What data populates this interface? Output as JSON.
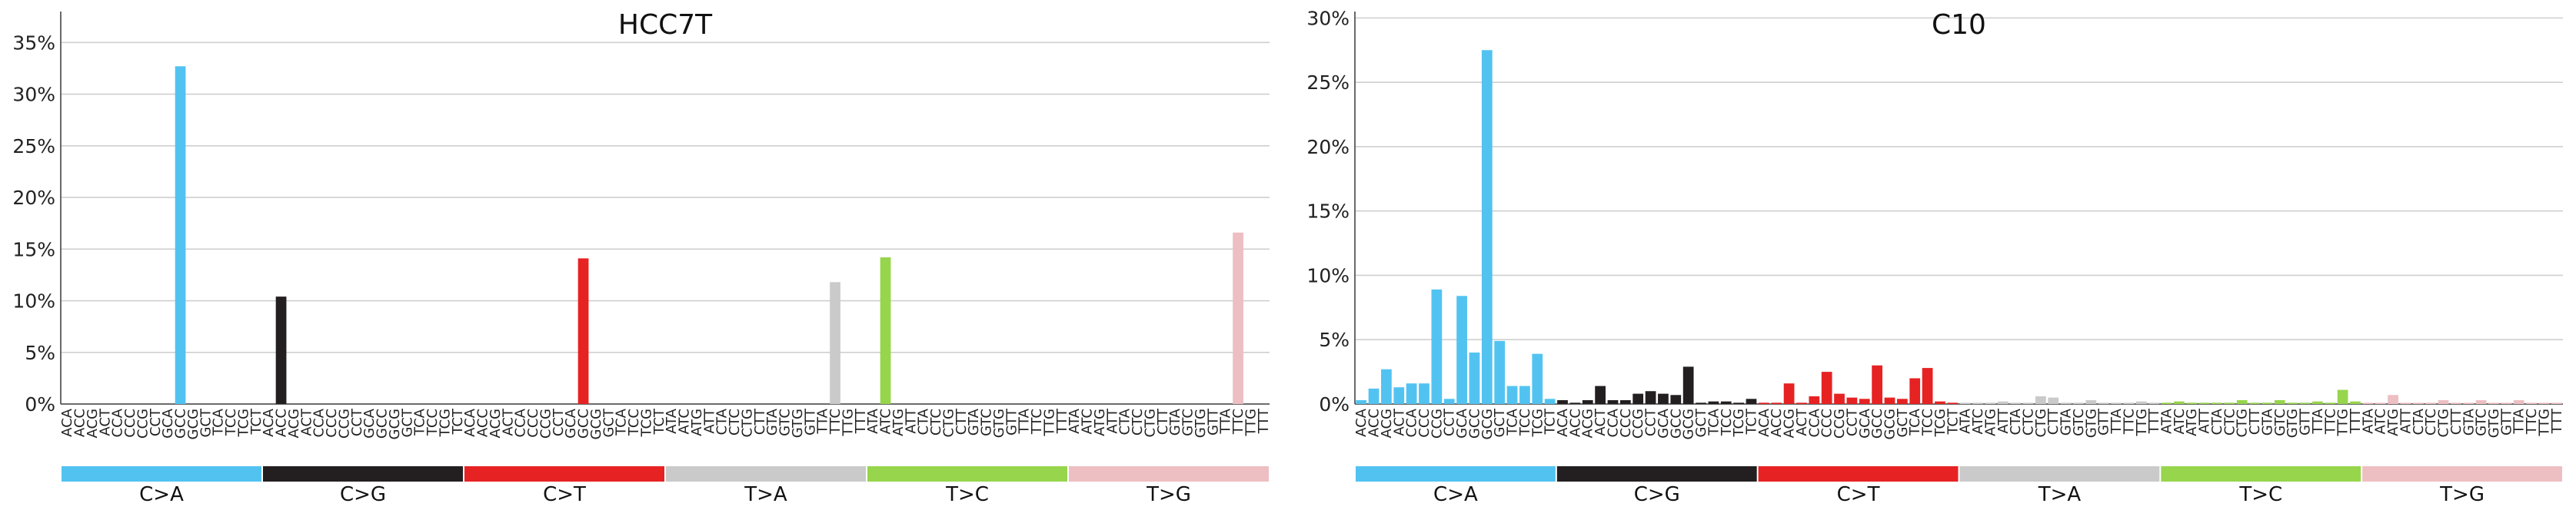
{
  "chart_data": [
    {
      "type": "bar",
      "title": "HCC7T",
      "ylim": [
        0,
        0.38
      ],
      "yticks": [
        0,
        0.05,
        0.1,
        0.15,
        0.2,
        0.25,
        0.3,
        0.35
      ],
      "ytick_labels": [
        "0%",
        "5%",
        "10%",
        "15%",
        "20%",
        "25%",
        "30%",
        "35%"
      ],
      "grid": true,
      "categories": [
        "ACA",
        "ACC",
        "ACG",
        "ACT",
        "CCA",
        "CCC",
        "CCG",
        "CCT",
        "GCA",
        "GCC",
        "GCG",
        "GCT",
        "TCA",
        "TCC",
        "TCG",
        "TCT",
        "ACA",
        "ACC",
        "ACG",
        "ACT",
        "CCA",
        "CCC",
        "CCG",
        "CCT",
        "GCA",
        "GCC",
        "GCG",
        "GCT",
        "TCA",
        "TCC",
        "TCG",
        "TCT",
        "ACA",
        "ACC",
        "ACG",
        "ACT",
        "CCA",
        "CCC",
        "CCG",
        "CCT",
        "GCA",
        "GCC",
        "GCG",
        "GCT",
        "TCA",
        "TCC",
        "TCG",
        "TCT",
        "ATA",
        "ATC",
        "ATG",
        "ATT",
        "CTA",
        "CTC",
        "CTG",
        "CTT",
        "GTA",
        "GTC",
        "GTG",
        "GTT",
        "TTA",
        "TTC",
        "TTG",
        "TTT",
        "ATA",
        "ATC",
        "ATG",
        "ATT",
        "CTA",
        "CTC",
        "CTG",
        "CTT",
        "GTA",
        "GTC",
        "GTG",
        "GTT",
        "TTA",
        "TTC",
        "TTG",
        "TTT",
        "ATA",
        "ATC",
        "ATG",
        "ATT",
        "CTA",
        "CTC",
        "CTG",
        "CTT",
        "GTA",
        "GTC",
        "GTG",
        "GTT",
        "TTA",
        "TTC",
        "TTG",
        "TTT"
      ],
      "values": [
        0,
        0,
        0,
        0,
        0,
        0,
        0,
        0,
        0,
        0.327,
        0,
        0,
        0,
        0,
        0,
        0,
        0,
        0.104,
        0,
        0,
        0,
        0,
        0,
        0,
        0,
        0,
        0,
        0,
        0,
        0,
        0,
        0,
        0,
        0,
        0,
        0,
        0,
        0,
        0,
        0,
        0,
        0.141,
        0,
        0,
        0,
        0,
        0,
        0,
        0,
        0,
        0,
        0,
        0,
        0,
        0,
        0,
        0,
        0,
        0,
        0,
        0,
        0.118,
        0,
        0,
        0,
        0.142,
        0,
        0,
        0,
        0,
        0,
        0,
        0,
        0,
        0,
        0,
        0,
        0,
        0,
        0,
        0,
        0,
        0,
        0,
        0,
        0,
        0,
        0,
        0,
        0,
        0,
        0,
        0,
        0.166,
        0,
        0
      ],
      "groups": [
        {
          "label": "C>A",
          "color": "#52C3F1"
        },
        {
          "label": "C>G",
          "color": "#231F20"
        },
        {
          "label": "C>T",
          "color": "#E62223"
        },
        {
          "label": "T>A",
          "color": "#CBCACB"
        },
        {
          "label": "T>C",
          "color": "#97D54C"
        },
        {
          "label": "T>G",
          "color": "#EDBFC2"
        }
      ]
    },
    {
      "type": "bar",
      "title": "C10",
      "ylim": [
        0,
        0.305
      ],
      "yticks": [
        0,
        0.05,
        0.1,
        0.15,
        0.2,
        0.25,
        0.3
      ],
      "ytick_labels": [
        "0%",
        "5%",
        "10%",
        "15%",
        "20%",
        "25%",
        "30%"
      ],
      "grid": true,
      "categories": [
        "ACA",
        "ACC",
        "ACG",
        "ACT",
        "CCA",
        "CCC",
        "CCG",
        "CCT",
        "GCA",
        "GCC",
        "GCG",
        "GCT",
        "TCA",
        "TCC",
        "TCG",
        "TCT",
        "ACA",
        "ACC",
        "ACG",
        "ACT",
        "CCA",
        "CCC",
        "CCG",
        "CCT",
        "GCA",
        "GCC",
        "GCG",
        "GCT",
        "TCA",
        "TCC",
        "TCG",
        "TCT",
        "ACA",
        "ACC",
        "ACG",
        "ACT",
        "CCA",
        "CCC",
        "CCG",
        "CCT",
        "GCA",
        "GCC",
        "GCG",
        "GCT",
        "TCA",
        "TCC",
        "TCG",
        "TCT",
        "ATA",
        "ATC",
        "ATG",
        "ATT",
        "CTA",
        "CTC",
        "CTG",
        "CTT",
        "GTA",
        "GTC",
        "GTG",
        "GTT",
        "TTA",
        "TTC",
        "TTG",
        "TTT",
        "ATA",
        "ATC",
        "ATG",
        "ATT",
        "CTA",
        "CTC",
        "CTG",
        "CTT",
        "GTA",
        "GTC",
        "GTG",
        "GTT",
        "TTA",
        "TTC",
        "TTG",
        "TTT",
        "ATA",
        "ATC",
        "ATG",
        "ATT",
        "CTA",
        "CTC",
        "CTG",
        "CTT",
        "GTA",
        "GTC",
        "GTG",
        "GTT",
        "TTA",
        "TTC",
        "TTG",
        "TTT"
      ],
      "values": [
        0.003,
        0.012,
        0.027,
        0.013,
        0.016,
        0.016,
        0.089,
        0.004,
        0.084,
        0.04,
        0.275,
        0.049,
        0.014,
        0.014,
        0.039,
        0.004,
        0.003,
        0.001,
        0.003,
        0.014,
        0.003,
        0.003,
        0.008,
        0.01,
        0.008,
        0.007,
        0.029,
        0.001,
        0.002,
        0.002,
        0.001,
        0.004,
        0.001,
        0.001,
        0.016,
        0.001,
        0.006,
        0.025,
        0.008,
        0.005,
        0.004,
        0.03,
        0.005,
        0.004,
        0.02,
        0.028,
        0.002,
        0.001,
        0.001,
        0.001,
        0.001,
        0.002,
        0.001,
        0.001,
        0.006,
        0.005,
        0.001,
        0.001,
        0.003,
        0.001,
        0.001,
        0.001,
        0.002,
        0.001,
        0.001,
        0.002,
        0.001,
        0.001,
        0.001,
        0.001,
        0.003,
        0.001,
        0.001,
        0.003,
        0.001,
        0.001,
        0.002,
        0.001,
        0.011,
        0.002,
        0.001,
        0.001,
        0.007,
        0.001,
        0.001,
        0.001,
        0.003,
        0.001,
        0.001,
        0.003,
        0.001,
        0.001,
        0.003,
        0.001,
        0.001,
        0.001
      ],
      "groups": [
        {
          "label": "C>A",
          "color": "#52C3F1"
        },
        {
          "label": "C>G",
          "color": "#231F20"
        },
        {
          "label": "C>T",
          "color": "#E62223"
        },
        {
          "label": "T>A",
          "color": "#CBCACB"
        },
        {
          "label": "T>C",
          "color": "#97D54C"
        },
        {
          "label": "T>G",
          "color": "#EDBFC2"
        }
      ]
    }
  ]
}
